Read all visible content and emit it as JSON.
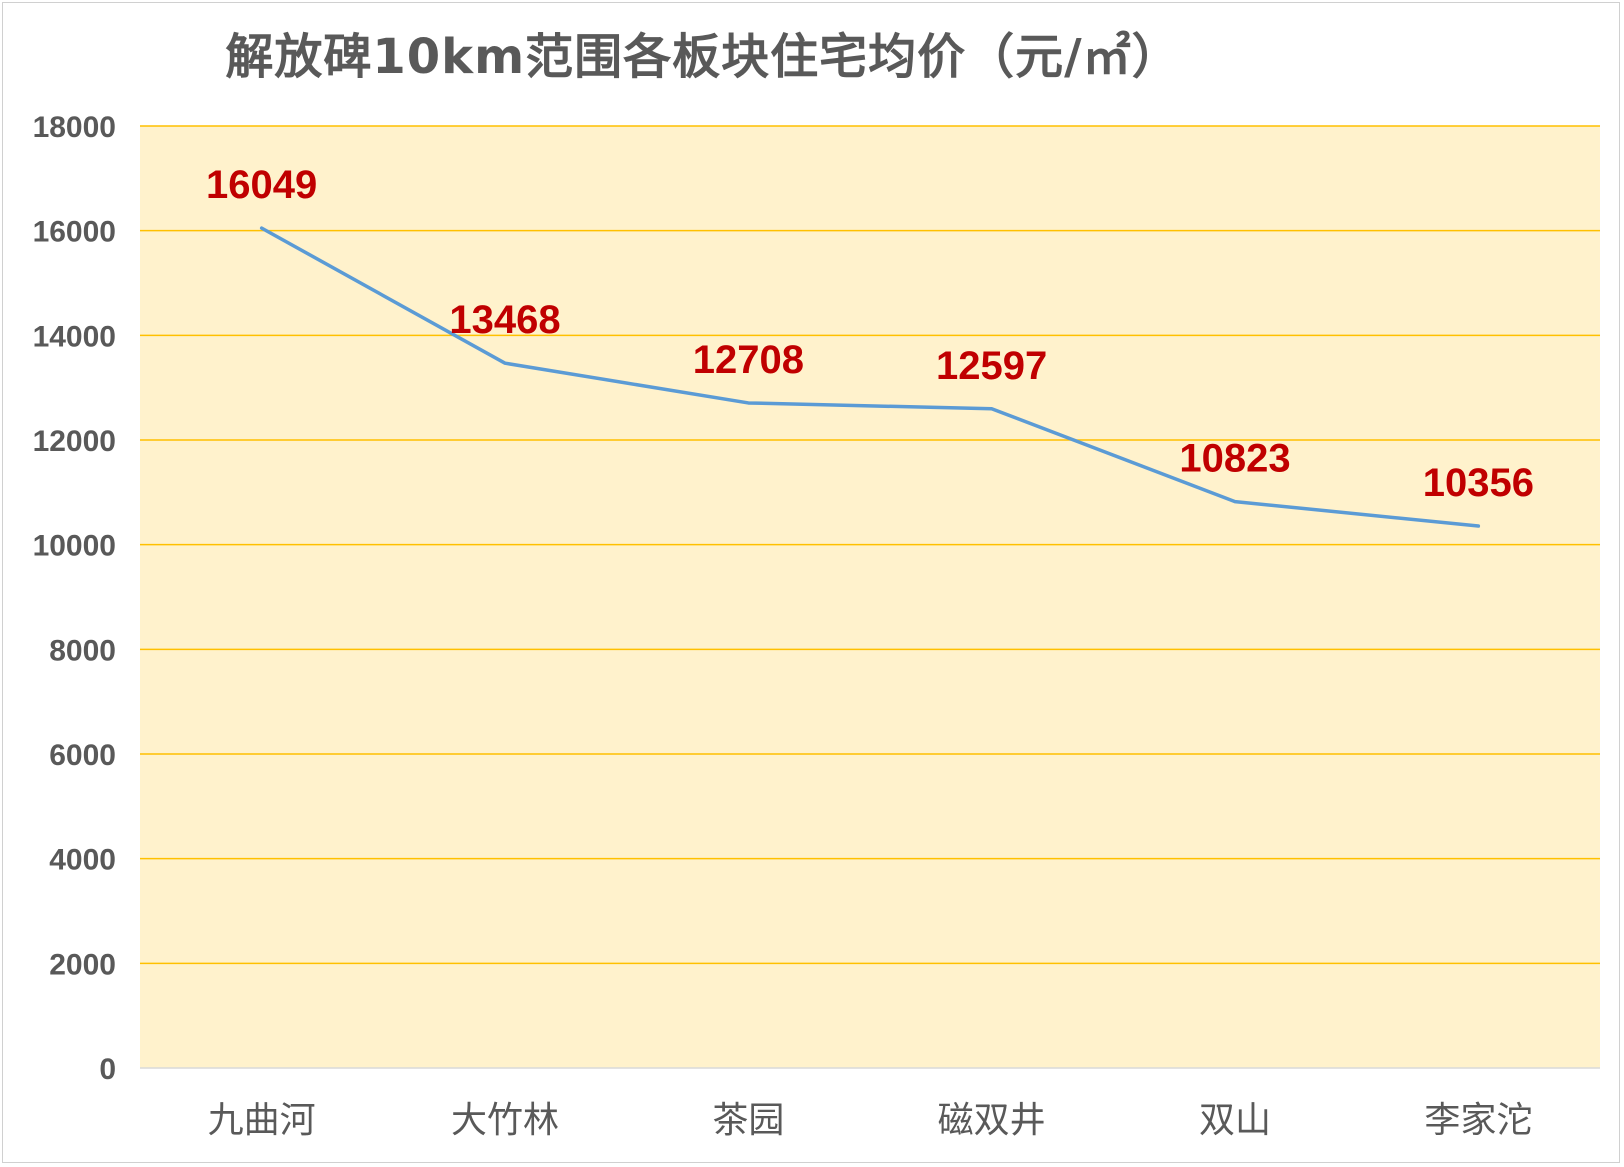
{
  "chart_data": {
    "type": "line",
    "title": "解放碑10km范围各板块住宅均价（元/㎡）",
    "xlabel": "",
    "ylabel": "",
    "categories": [
      "九曲河",
      "大竹林",
      "茶园",
      "磁双井",
      "双山",
      "李家沱"
    ],
    "series": [
      {
        "values": [
          16049,
          13468,
          12708,
          12597,
          10823,
          10356
        ]
      }
    ],
    "data_labels": [
      "16049",
      "13468",
      "12708",
      "12597",
      "10823",
      "10356"
    ],
    "y_ticks": [
      "0",
      "2000",
      "4000",
      "6000",
      "8000",
      "10000",
      "12000",
      "14000",
      "16000",
      "18000"
    ],
    "ylim": [
      0,
      18000
    ],
    "grid": true,
    "legend": "none",
    "colors": {
      "line": "#5b9bd5",
      "plot_background": "#fff2cc",
      "gridline": "#ffc000",
      "data_label": "#c00000",
      "axis_text": "#595959"
    }
  }
}
